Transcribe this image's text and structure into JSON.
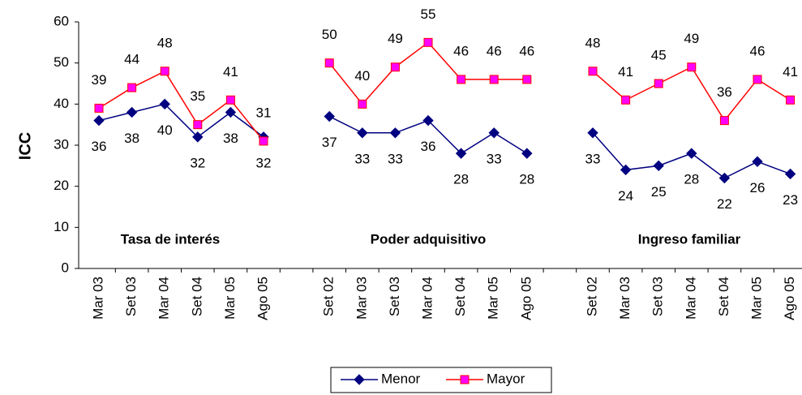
{
  "chart_data": {
    "type": "line",
    "y_label": "ICC",
    "annotations": [
      "Tasa de interés",
      "Poder adquisitivo",
      "Ingreso familiar"
    ],
    "categories": [
      "Mar 03",
      "Set 03",
      "Mar 04",
      "Set 04",
      "Mar 05",
      "Ago 05",
      null,
      "Set 02",
      "Mar 03",
      "Set 03",
      "Mar 04",
      "Set 04",
      "Mar 05",
      "Ago 05",
      null,
      "Set 02",
      "Mar 03",
      "Set 03",
      "Mar 04",
      "Set 04",
      "Mar 05",
      "Ago 05"
    ],
    "series": [
      {
        "name": "Menor",
        "color": "#000080",
        "marker": "diamond",
        "marker_color": "#000080",
        "label_position": "below",
        "values": [
          36,
          38,
          40,
          32,
          38,
          32,
          null,
          37,
          33,
          33,
          36,
          28,
          33,
          28,
          null,
          33,
          24,
          25,
          28,
          22,
          26,
          23
        ]
      },
      {
        "name": "Mayor",
        "color": "#ff0000",
        "marker": "square",
        "marker_color": "#ff00ff",
        "label_position": "above",
        "values": [
          39,
          44,
          48,
          35,
          41,
          31,
          null,
          50,
          40,
          49,
          55,
          46,
          46,
          46,
          null,
          48,
          41,
          45,
          49,
          36,
          46,
          41
        ]
      }
    ],
    "ylim": [
      0,
      60
    ],
    "yticks": [
      0,
      10,
      20,
      30,
      40,
      50,
      60
    ],
    "grid": false,
    "legend": "bottom"
  }
}
